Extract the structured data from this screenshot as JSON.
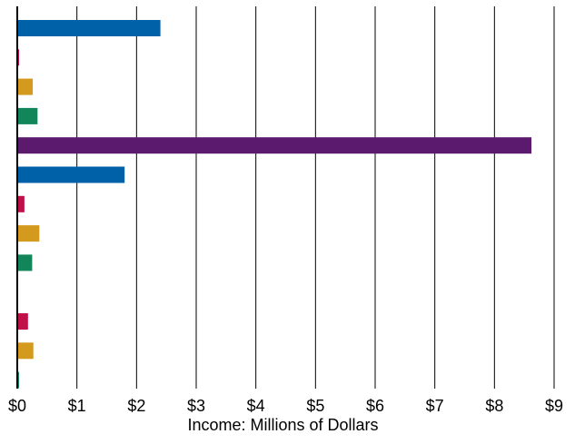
{
  "chart_data": {
    "type": "bar",
    "orientation": "horizontal",
    "title": "",
    "xlabel": "Income: Millions of Dollars",
    "ylabel": "",
    "xlim": [
      0,
      9
    ],
    "x_ticks": [
      "$0",
      "$1",
      "$2",
      "$3",
      "$4",
      "$5",
      "$6",
      "$7",
      "$8",
      "$9"
    ],
    "grid": "vertical",
    "bars": [
      {
        "value": 2.4,
        "color": "#0061a8"
      },
      {
        "value": 0.02,
        "color": "#c0104a"
      },
      {
        "value": 0.26,
        "color": "#d49a1e"
      },
      {
        "value": 0.34,
        "color": "#12865a"
      },
      {
        "value": 8.62,
        "color": "#5b1a6e"
      },
      {
        "value": 1.8,
        "color": "#0061a8"
      },
      {
        "value": 0.12,
        "color": "#c0104a"
      },
      {
        "value": 0.37,
        "color": "#d49a1e"
      },
      {
        "value": 0.25,
        "color": "#12865a"
      },
      {
        "value": 0,
        "color": "#5b1a6e"
      },
      {
        "value": 0.18,
        "color": "#c0104a"
      },
      {
        "value": 0.27,
        "color": "#d49a1e"
      },
      {
        "value": 0.02,
        "color": "#12865a"
      }
    ]
  }
}
